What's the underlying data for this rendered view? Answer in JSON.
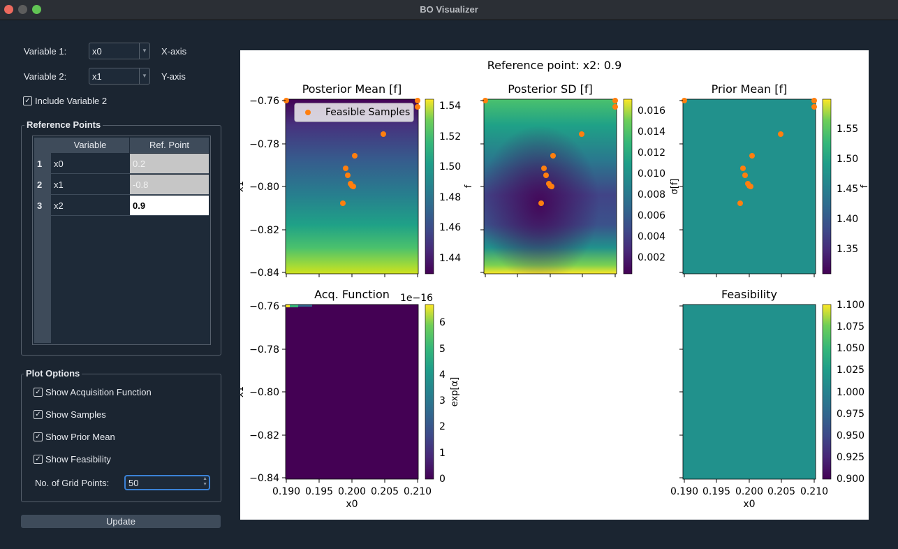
{
  "window": {
    "title": "BO Visualizer"
  },
  "controls": {
    "variable1": {
      "label": "Variable 1:",
      "value": "x0",
      "axis": "X-axis"
    },
    "variable2": {
      "label": "Variable 2:",
      "value": "x1",
      "axis": "Y-axis"
    },
    "include_var2": {
      "label": "Include Variable 2",
      "checked": true
    }
  },
  "reference_points": {
    "title": "Reference Points",
    "headers": [
      "Variable",
      "Ref. Point"
    ],
    "rows": [
      {
        "num": "1",
        "variable": "x0",
        "value": "0.2"
      },
      {
        "num": "2",
        "variable": "x1",
        "value": "-0.8"
      },
      {
        "num": "3",
        "variable": "x2",
        "value": "0.9"
      }
    ]
  },
  "plot_options": {
    "title": "Plot Options",
    "show_acq": "Show Acquisition Function",
    "show_samples": "Show Samples",
    "show_prior": "Show Prior Mean",
    "show_feas": "Show Feasibility",
    "grid_label": "No. of Grid Points:",
    "grid_value": "50"
  },
  "update_button": "Update",
  "figure": {
    "suptitle": "Reference point: x2: 0.9",
    "panels": {
      "post_mean": {
        "title": "Posterior Mean [f]",
        "cbar_label": "f",
        "cbar_ticks": [
          "1.54",
          "1.52",
          "1.50",
          "1.48",
          "1.46",
          "1.44"
        ],
        "legend": "Feasible Samples"
      },
      "post_sd": {
        "title": "Posterior SD [f]",
        "ylabel": "σ[f]",
        "cbar_ticks": [
          "0.016",
          "0.014",
          "0.012",
          "0.010",
          "0.008",
          "0.006",
          "0.004",
          "0.002"
        ]
      },
      "prior_mean": {
        "title": "Prior Mean [f]",
        "cbar_label": "f",
        "cbar_ticks": [
          "1.55",
          "1.50",
          "1.45",
          "1.40",
          "1.35"
        ]
      },
      "acq": {
        "title": "Acq. Function",
        "cbar_label": "exp[α]",
        "cbar_offset": "1e−16",
        "cbar_ticks": [
          "6",
          "5",
          "4",
          "3",
          "2",
          "1",
          "0"
        ]
      },
      "feas": {
        "title": "Feasibility",
        "cbar_ticks": [
          "1.100",
          "1.075",
          "1.050",
          "1.025",
          "1.000",
          "0.975",
          "0.950",
          "0.925",
          "0.900"
        ]
      }
    },
    "y_ticks": [
      "−0.76",
      "−0.78",
      "−0.80",
      "−0.82",
      "−0.84"
    ],
    "x_ticks": [
      "0.190",
      "0.195",
      "0.200",
      "0.205",
      "0.210"
    ],
    "ylabel": "x1",
    "xlabel": "x0",
    "colors": {
      "samples": "#ff7f0e",
      "viridis_mid": "#21918c",
      "viridis_low": "#440154",
      "viridis_high": "#fde725"
    }
  },
  "chart_data": [
    {
      "type": "heatmap",
      "title": "Posterior Mean [f]",
      "x_range": [
        0.19,
        0.21
      ],
      "y_range": [
        -0.84,
        -0.76
      ],
      "colorbar": {
        "label": "f",
        "range": [
          1.43,
          1.545
        ]
      },
      "series": [
        {
          "name": "Feasible Samples",
          "type": "scatter",
          "x": [
            0.19,
            0.21,
            0.21,
            0.2048,
            0.2003,
            0.199,
            0.1993,
            0.1997,
            0.1999,
            0.2001,
            0.1988
          ],
          "y": [
            -0.76,
            -0.76,
            -0.763,
            -0.7757,
            -0.7858,
            -0.7915,
            -0.7948,
            -0.7985,
            -0.7995,
            -0.8,
            -0.8078
          ]
        }
      ]
    },
    {
      "type": "heatmap",
      "title": "Posterior SD [f]",
      "x_range": [
        0.19,
        0.21
      ],
      "y_range": [
        -0.84,
        -0.76
      ],
      "colorbar": {
        "label": "σ[f]",
        "range": [
          0.0008,
          0.017
        ]
      }
    },
    {
      "type": "heatmap",
      "title": "Prior Mean [f]",
      "x_range": [
        0.19,
        0.21
      ],
      "y_range": [
        -0.84,
        -0.76
      ],
      "colorbar": {
        "label": "f",
        "range": [
          1.305,
          1.6
        ]
      }
    },
    {
      "type": "heatmap",
      "title": "Acq. Function",
      "x_range": [
        0.19,
        0.21
      ],
      "y_range": [
        -0.84,
        -0.76
      ],
      "colorbar": {
        "label": "exp[α]",
        "range": [
          0,
          6.7
        ],
        "offset": "1e−16"
      }
    },
    {
      "type": "heatmap",
      "title": "Feasibility",
      "x_range": [
        0.19,
        0.21
      ],
      "y_range": [
        -0.84,
        -0.76
      ],
      "colorbar": {
        "range": [
          0.9,
          1.1
        ]
      }
    }
  ]
}
